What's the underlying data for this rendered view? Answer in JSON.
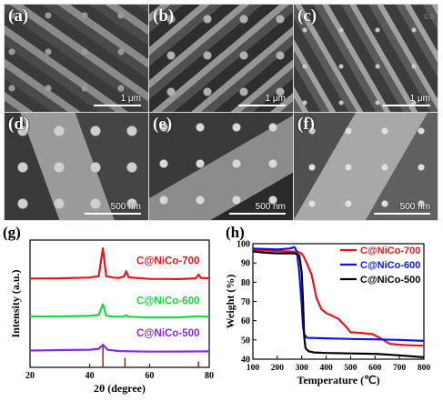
{
  "figure": {
    "corner_note": "0.0",
    "sem_panels": [
      {
        "letter": "(a)",
        "scale": "1 μm"
      },
      {
        "letter": "(b)",
        "scale": "1 μm"
      },
      {
        "letter": "(c)",
        "scale": "1 μm"
      },
      {
        "letter": "(d)",
        "scale": "500 nm"
      },
      {
        "letter": "(e)",
        "scale": "500 nm"
      },
      {
        "letter": "(f)",
        "scale": "500 nm"
      }
    ],
    "panel_g_letter": "(g)",
    "panel_h_letter": "(h)"
  },
  "chart_data": [
    {
      "type": "line",
      "panel": "(g)",
      "xlabel": "2θ (degree)",
      "ylabel": "Intensity (a.u.)",
      "xlim": [
        20,
        80
      ],
      "xticks": [
        "20",
        "40",
        "60",
        "80"
      ],
      "yticks": false,
      "series": [
        {
          "name": "C@NiCo-700",
          "color": "#e8161b",
          "offset": 3,
          "x": [
            20,
            30,
            40,
            43,
            44.4,
            45.5,
            48,
            50,
            51.5,
            52.2,
            53,
            60,
            70,
            75.5,
            76.4,
            77.2,
            80
          ],
          "y": [
            0.0,
            0.0,
            0.02,
            0.06,
            1.0,
            0.06,
            0.02,
            0.02,
            0.08,
            0.26,
            0.06,
            0.01,
            0.0,
            0.02,
            0.14,
            0.02,
            0.0
          ]
        },
        {
          "name": "C@NiCo-600",
          "color": "#18d83a",
          "offset": 1.7,
          "x": [
            20,
            30,
            40,
            43,
            44.4,
            45.5,
            48,
            51.5,
            52.2,
            53,
            60,
            70,
            76.4,
            80
          ],
          "y": [
            0.0,
            0.0,
            0.02,
            0.05,
            0.42,
            0.04,
            0.02,
            0.03,
            0.08,
            0.03,
            0.0,
            0.0,
            0.03,
            0.0
          ]
        },
        {
          "name": "C@NiCo-500",
          "color": "#8a2be2",
          "offset": 0.55,
          "x": [
            20,
            30,
            40,
            43,
            44.4,
            46,
            50,
            60,
            70,
            80
          ],
          "y": [
            0.0,
            0.02,
            0.04,
            0.08,
            0.22,
            0.06,
            0.02,
            0.0,
            0.0,
            0.0
          ]
        }
      ],
      "reference_peaks": [
        44.4,
        51.8,
        76.4
      ],
      "reference_heights": [
        1.0,
        0.4,
        0.25
      ],
      "reference_color": "#8b1a1a"
    },
    {
      "type": "line",
      "panel": "(h)",
      "xlabel": "Temperature (℃)",
      "ylabel": "Weight (%)",
      "xlim": [
        100,
        800
      ],
      "ylim": [
        40,
        100
      ],
      "xticks": [
        100,
        200,
        300,
        400,
        500,
        600,
        700,
        800
      ],
      "yticks": [
        40,
        50,
        60,
        70,
        80,
        90,
        100
      ],
      "legend": "top-right",
      "series": [
        {
          "name": "C@NiCo-700",
          "color": "#e8161b",
          "x": [
            100,
            150,
            200,
            250,
            280,
            295,
            305,
            320,
            340,
            360,
            380,
            400,
            450,
            480,
            500,
            550,
            590,
            620,
            660,
            700,
            750,
            800
          ],
          "y": [
            96.8,
            96.5,
            96.2,
            96.0,
            95.8,
            95.3,
            94,
            90,
            84,
            72,
            66,
            64,
            61,
            57,
            54,
            53.5,
            53,
            51,
            48,
            47.5,
            47.2,
            47
          ]
        },
        {
          "name": "C@NiCo-600",
          "color": "#0a16e8",
          "x": [
            100,
            150,
            200,
            250,
            270,
            280,
            290,
            300,
            305,
            310,
            320,
            330,
            350,
            400,
            500,
            600,
            700,
            800
          ],
          "y": [
            97.5,
            97.2,
            97.0,
            97.5,
            98.2,
            96,
            85,
            68,
            57,
            53,
            51.2,
            51,
            51,
            50.8,
            50.5,
            50.3,
            50,
            49.5
          ]
        },
        {
          "name": "C@NiCo-500",
          "color": "#000000",
          "x": [
            100,
            150,
            200,
            250,
            270,
            290,
            300,
            305,
            310,
            315,
            320,
            330,
            350,
            400,
            500,
            600,
            700,
            800
          ],
          "y": [
            96,
            95.3,
            95.0,
            95.0,
            95.0,
            94,
            85,
            70,
            52,
            46,
            45,
            44,
            43.5,
            43.2,
            43,
            42.8,
            42,
            41
          ]
        }
      ]
    }
  ]
}
